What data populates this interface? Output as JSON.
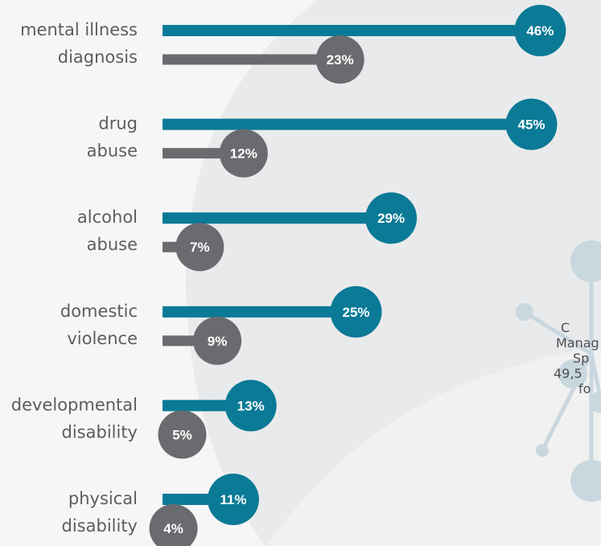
{
  "chart_data": {
    "type": "bar",
    "orientation": "horizontal",
    "categories": [
      [
        "mental illness",
        "diagnosis"
      ],
      [
        "drug",
        "abuse"
      ],
      [
        "alcohol",
        "abuse"
      ],
      [
        "domestic",
        "violence"
      ],
      [
        "developmental",
        "disability"
      ],
      [
        "physical",
        "disability"
      ]
    ],
    "series": [
      {
        "values": [
          46,
          45,
          29,
          25,
          13,
          11
        ],
        "labels": [
          "46%",
          "45%",
          "29%",
          "25%",
          "13%",
          "11%"
        ]
      },
      {
        "values": [
          23,
          12,
          7,
          9,
          5,
          4
        ],
        "labels": [
          "23%",
          "12%",
          "7%",
          "9%",
          "5%",
          "4%"
        ]
      }
    ],
    "unit": "%",
    "legend": "none",
    "grid": false
  },
  "colors": {
    "series_primary": "#0a7a96",
    "series_secondary": "#6a6b6f",
    "background": "#e9eaec",
    "background_shape": "#f6f6f7",
    "label_text": "#5b5d61",
    "decor": "#c9d7df"
  },
  "side_note": {
    "lines": [
      "C",
      "Manag",
      "Sp",
      "49,5",
      "fo"
    ]
  }
}
